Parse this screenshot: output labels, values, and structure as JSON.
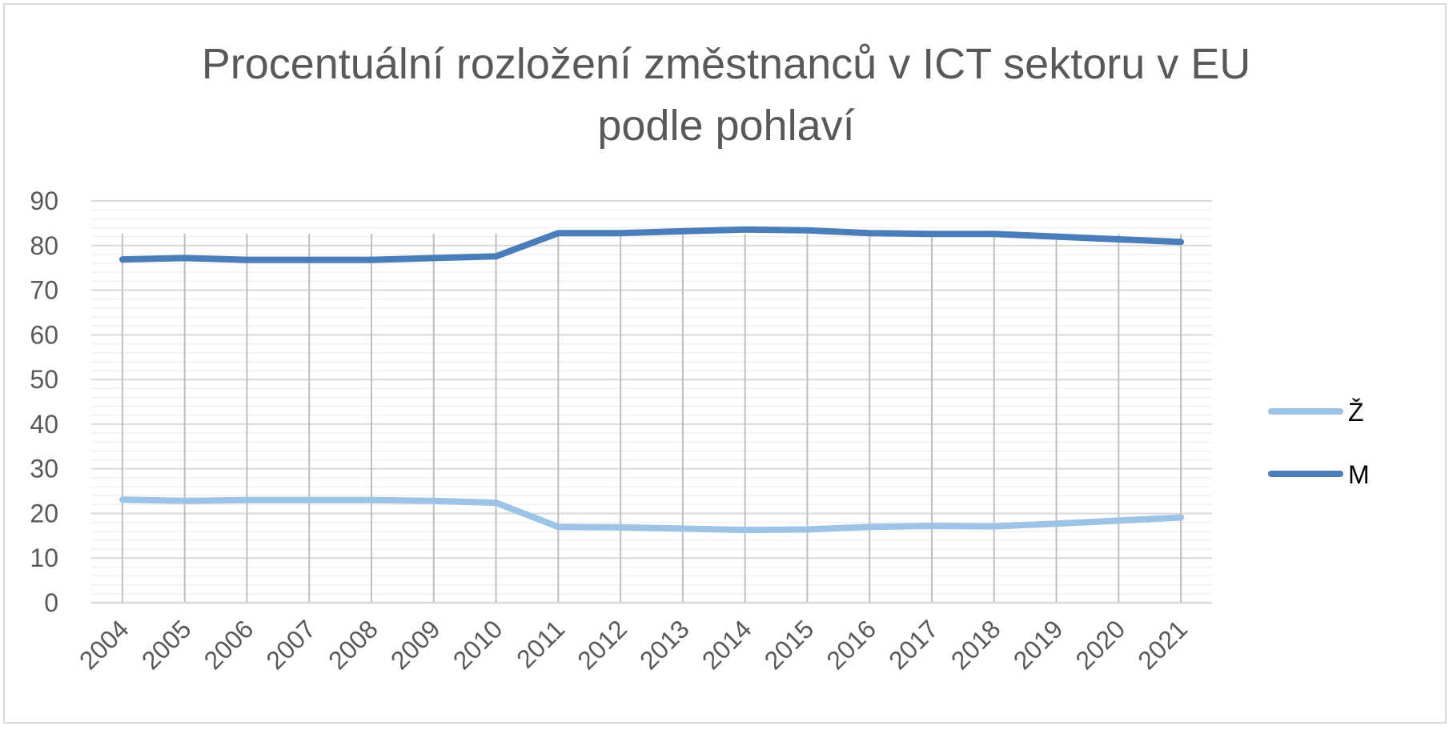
{
  "chart_data": {
    "type": "line",
    "title_lines": [
      "Procentuální rozložení změstnanců v ICT sektoru v EU",
      "podle pohlaví"
    ],
    "xlabel": "",
    "ylabel": "",
    "categories": [
      "2004",
      "2005",
      "2006",
      "2007",
      "2008",
      "2009",
      "2010",
      "2011",
      "2012",
      "2013",
      "2014",
      "2015",
      "2016",
      "2017",
      "2018",
      "2019",
      "2020",
      "2021"
    ],
    "ylim": [
      0,
      90
    ],
    "y_ticks": [
      "0",
      "10",
      "20",
      "30",
      "40",
      "50",
      "60",
      "70",
      "80",
      "90"
    ],
    "grid": true,
    "legend_position": "right",
    "series": [
      {
        "name": "Ž",
        "color": "#9dc3e6",
        "values": [
          23.1,
          22.8,
          23.0,
          23.0,
          23.0,
          22.8,
          22.4,
          17.0,
          16.9,
          16.6,
          16.3,
          16.4,
          17.0,
          17.2,
          17.1,
          17.7,
          18.4,
          19.1
        ]
      },
      {
        "name": "M",
        "color": "#4a7ebb",
        "values": [
          76.9,
          77.2,
          76.8,
          76.8,
          76.8,
          77.2,
          77.6,
          82.8,
          82.8,
          83.2,
          83.6,
          83.4,
          82.8,
          82.6,
          82.6,
          82.0,
          81.4,
          80.8
        ]
      }
    ]
  }
}
